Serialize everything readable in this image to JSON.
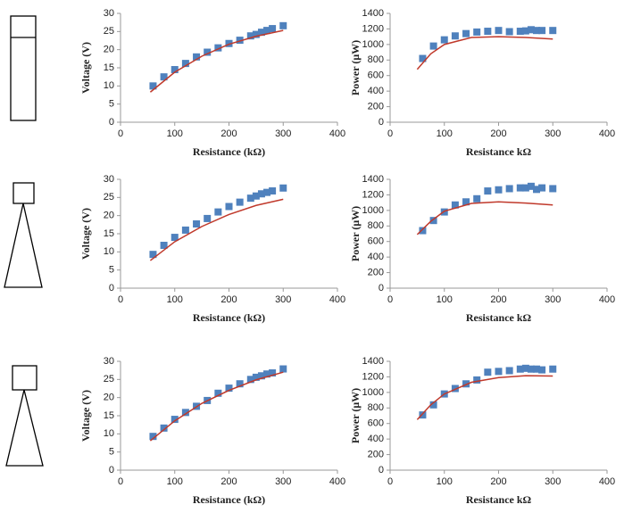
{
  "chart_data": [
    {
      "type": "scatter",
      "xlabel": "Resistance (kΩ)",
      "ylabel": "Voltage (V)",
      "xlim": [
        0,
        400
      ],
      "xticks": [
        0,
        100,
        200,
        300,
        400
      ],
      "ylim": [
        0,
        30
      ],
      "yticks": [
        0,
        5,
        10,
        15,
        20,
        25,
        30
      ],
      "series": [
        {
          "color": "#4f81bd",
          "marker": "square",
          "x": [
            60,
            80,
            100,
            120,
            140,
            160,
            180,
            200,
            220,
            240,
            250,
            260,
            270,
            280,
            300
          ],
          "values": [
            10,
            12.5,
            14.5,
            16.2,
            18,
            19.3,
            20.5,
            21.7,
            22.6,
            23.8,
            24.2,
            24.8,
            25.3,
            25.8,
            26.6
          ]
        },
        {
          "color": "#c0392b",
          "marker": "line",
          "x": [
            55,
            100,
            150,
            200,
            250,
            300
          ],
          "values": [
            8.3,
            13.8,
            18.2,
            21.5,
            23.7,
            25.3
          ]
        }
      ]
    },
    {
      "type": "scatter",
      "xlabel": "Resistance kΩ",
      "ylabel": "Power (μW)",
      "xlim": [
        0,
        400
      ],
      "xticks": [
        0,
        100,
        200,
        300,
        400
      ],
      "ylim": [
        0,
        1400
      ],
      "yticks": [
        0,
        200,
        400,
        600,
        800,
        1000,
        1200,
        1400
      ],
      "series": [
        {
          "color": "#4f81bd",
          "marker": "square",
          "x": [
            60,
            80,
            100,
            120,
            140,
            160,
            180,
            200,
            220,
            240,
            250,
            260,
            270,
            280,
            300
          ],
          "values": [
            820,
            980,
            1060,
            1110,
            1140,
            1160,
            1170,
            1180,
            1165,
            1170,
            1175,
            1190,
            1180,
            1180,
            1180
          ]
        },
        {
          "color": "#c0392b",
          "marker": "line",
          "x": [
            50,
            75,
            100,
            150,
            200,
            250,
            300
          ],
          "values": [
            680,
            880,
            1000,
            1090,
            1100,
            1090,
            1070
          ]
        }
      ]
    },
    {
      "type": "scatter",
      "xlabel": "Resistance (kΩ)",
      "ylabel": "Voltage (V)",
      "xlim": [
        0,
        400
      ],
      "xticks": [
        0,
        100,
        200,
        300,
        400
      ],
      "ylim": [
        0,
        30
      ],
      "yticks": [
        0,
        5,
        10,
        15,
        20,
        25,
        30
      ],
      "series": [
        {
          "color": "#4f81bd",
          "marker": "square",
          "x": [
            60,
            80,
            100,
            120,
            140,
            160,
            180,
            200,
            220,
            240,
            250,
            260,
            270,
            280,
            300
          ],
          "values": [
            9.3,
            11.8,
            14,
            16,
            17.7,
            19.2,
            21,
            22.5,
            23.7,
            24.8,
            25.4,
            26,
            26.4,
            26.8,
            27.6
          ]
        },
        {
          "color": "#c0392b",
          "marker": "line",
          "x": [
            55,
            100,
            150,
            200,
            250,
            300
          ],
          "values": [
            7.6,
            12.8,
            17,
            20.3,
            22.8,
            24.5
          ]
        }
      ]
    },
    {
      "type": "scatter",
      "xlabel": "Resistance kΩ",
      "ylabel": "Power (μW)",
      "xlim": [
        0,
        400
      ],
      "xticks": [
        0,
        100,
        200,
        300,
        400
      ],
      "ylim": [
        0,
        1400
      ],
      "yticks": [
        0,
        200,
        400,
        600,
        800,
        1000,
        1200,
        1400
      ],
      "series": [
        {
          "color": "#4f81bd",
          "marker": "square",
          "x": [
            60,
            80,
            100,
            120,
            140,
            160,
            180,
            200,
            220,
            240,
            250,
            260,
            270,
            280,
            300
          ],
          "values": [
            740,
            870,
            980,
            1070,
            1110,
            1150,
            1250,
            1265,
            1280,
            1290,
            1290,
            1310,
            1270,
            1290,
            1280
          ]
        },
        {
          "color": "#c0392b",
          "marker": "line",
          "x": [
            50,
            75,
            100,
            150,
            200,
            250,
            300
          ],
          "values": [
            690,
            860,
            990,
            1090,
            1110,
            1095,
            1070
          ]
        }
      ]
    },
    {
      "type": "scatter",
      "xlabel": "Resistance (kΩ)",
      "ylabel": "Voltage (V)",
      "xlim": [
        0,
        400
      ],
      "xticks": [
        0,
        100,
        200,
        300,
        400
      ],
      "ylim": [
        0,
        30
      ],
      "yticks": [
        0,
        5,
        10,
        15,
        20,
        25,
        30
      ],
      "series": [
        {
          "color": "#4f81bd",
          "marker": "square",
          "x": [
            60,
            80,
            100,
            120,
            140,
            160,
            180,
            200,
            220,
            240,
            250,
            260,
            270,
            280,
            300
          ],
          "values": [
            9.3,
            11.6,
            14,
            15.9,
            17.6,
            19.2,
            21.2,
            22.6,
            23.8,
            25,
            25.6,
            26,
            26.5,
            26.8,
            27.9
          ]
        },
        {
          "color": "#c0392b",
          "marker": "line",
          "x": [
            55,
            100,
            150,
            200,
            250,
            300
          ],
          "values": [
            8.1,
            13.6,
            18.4,
            22,
            24.9,
            27
          ]
        }
      ]
    },
    {
      "type": "scatter",
      "xlabel": "Resistance kΩ",
      "ylabel": "Power (μW)",
      "xlim": [
        0,
        400
      ],
      "xticks": [
        0,
        100,
        200,
        300,
        400
      ],
      "ylim": [
        0,
        1400
      ],
      "yticks": [
        0,
        200,
        400,
        600,
        800,
        1000,
        1200,
        1400
      ],
      "series": [
        {
          "color": "#4f81bd",
          "marker": "square",
          "x": [
            60,
            80,
            100,
            120,
            140,
            160,
            180,
            200,
            220,
            240,
            250,
            260,
            270,
            280,
            300
          ],
          "values": [
            710,
            840,
            980,
            1050,
            1110,
            1160,
            1260,
            1270,
            1280,
            1300,
            1310,
            1300,
            1300,
            1290,
            1300
          ]
        },
        {
          "color": "#c0392b",
          "marker": "line",
          "x": [
            50,
            75,
            100,
            150,
            200,
            250,
            300
          ],
          "values": [
            650,
            840,
            980,
            1130,
            1190,
            1215,
            1210
          ]
        }
      ]
    }
  ]
}
